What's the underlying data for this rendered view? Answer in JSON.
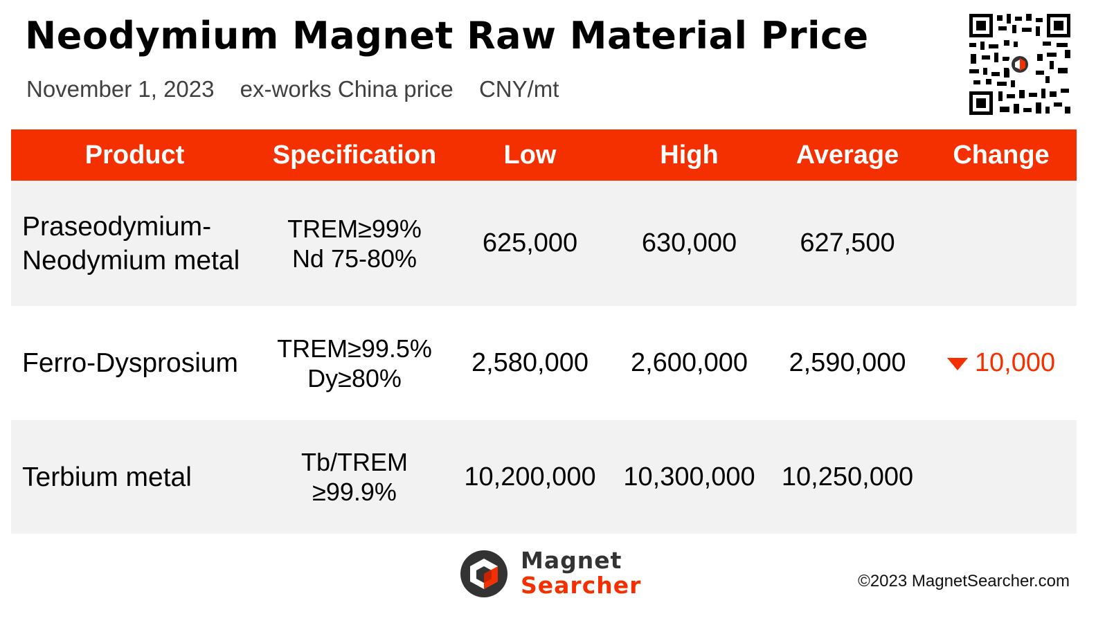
{
  "header": {
    "title": "Neodymium Magnet Raw Material Price",
    "date": "November 1, 2023",
    "basis": "ex-works China price",
    "unit": "CNY/mt"
  },
  "table": {
    "columns": [
      "Product",
      "Specification",
      "Low",
      "High",
      "Average",
      "Change"
    ],
    "rows": [
      {
        "product_line1": "Praseodymium-",
        "product_line2": "Neodymium metal",
        "spec_line1": "TREM≥99%",
        "spec_line2": "Nd 75-80%",
        "low": "625,000",
        "high": "630,000",
        "average": "627,500",
        "change": ""
      },
      {
        "product_line1": "Ferro-Dysprosium",
        "product_line2": "",
        "spec_line1": "TREM≥99.5%",
        "spec_line2": "Dy≥80%",
        "low": "2,580,000",
        "high": "2,600,000",
        "average": "2,590,000",
        "change": "10,000",
        "change_direction": "down",
        "change_icon": "triangle-down-icon"
      },
      {
        "product_line1": "Terbium metal",
        "product_line2": "",
        "spec_line1": "Tb/TREM",
        "spec_line2": "≥99.9%",
        "low": "10,200,000",
        "high": "10,300,000",
        "average": "10,250,000",
        "change": ""
      }
    ]
  },
  "footer": {
    "brand_line1": "Magnet",
    "brand_line2": "Searcher",
    "copyright": "©2023 MagnetSearcher.com"
  },
  "colors": {
    "accent": "#f53000",
    "row_shade": "#f2f2f2",
    "text": "#000000",
    "subtitle": "#404040"
  },
  "icons": [
    "qr-code-icon",
    "magnet-searcher-logo-icon",
    "triangle-down-icon"
  ]
}
